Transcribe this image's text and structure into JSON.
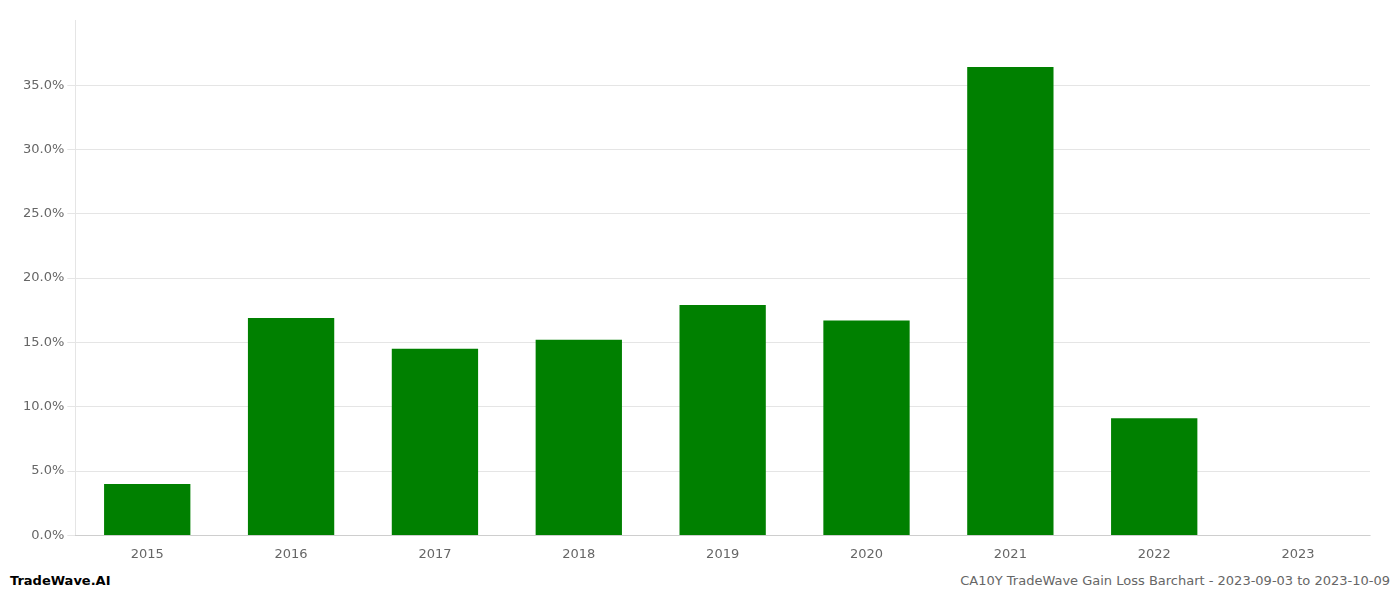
{
  "chart_data": {
    "type": "bar",
    "categories": [
      "2015",
      "2016",
      "2017",
      "2018",
      "2019",
      "2020",
      "2021",
      "2022",
      "2023"
    ],
    "values": [
      0.04,
      0.169,
      0.145,
      0.152,
      0.179,
      0.167,
      0.364,
      0.091,
      0.0
    ],
    "color": "#008000",
    "ylim": [
      0,
      0.4
    ],
    "yticks": [
      {
        "value": 0.0,
        "label": "0.0%"
      },
      {
        "value": 0.05,
        "label": "5.0%"
      },
      {
        "value": 0.1,
        "label": "10.0%"
      },
      {
        "value": 0.15,
        "label": "15.0%"
      },
      {
        "value": 0.2,
        "label": "20.0%"
      },
      {
        "value": 0.25,
        "label": "25.0%"
      },
      {
        "value": 0.3,
        "label": "30.0%"
      },
      {
        "value": 0.35,
        "label": "35.0%"
      }
    ],
    "grid": true,
    "annotations": [
      "TradeWave.AI",
      "CA10Y TradeWave Gain Loss Barchart - 2023-09-03 to 2023-10-09"
    ]
  }
}
